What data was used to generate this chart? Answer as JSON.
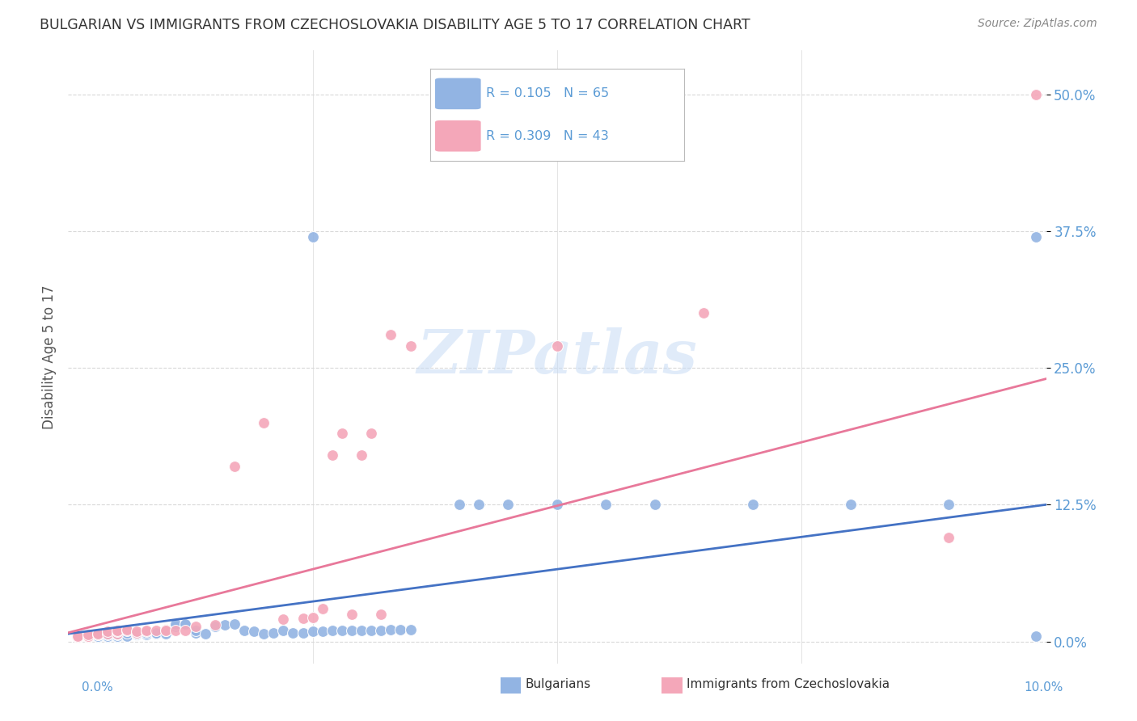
{
  "title": "BULGARIAN VS IMMIGRANTS FROM CZECHOSLOVAKIA DISABILITY AGE 5 TO 17 CORRELATION CHART",
  "source": "Source: ZipAtlas.com",
  "ylabel": "Disability Age 5 to 17",
  "ytick_labels": [
    "0.0%",
    "12.5%",
    "25.0%",
    "37.5%",
    "50.0%"
  ],
  "ytick_values": [
    0.0,
    0.125,
    0.25,
    0.375,
    0.5
  ],
  "xlim": [
    0.0,
    0.1
  ],
  "ylim": [
    -0.02,
    0.54
  ],
  "legend_blue_label": "Bulgarians",
  "legend_pink_label": "Immigrants from Czechoslovakia",
  "r_blue": 0.105,
  "n_blue": 65,
  "r_pink": 0.309,
  "n_pink": 43,
  "blue_color": "#92b4e3",
  "pink_color": "#f4a7b9",
  "blue_line_color": "#4472c4",
  "pink_line_color": "#e8789a",
  "axis_label_color": "#5b9bd5",
  "grid_color": "#d9d9d9",
  "watermark": "ZIPatlas",
  "blue_x": [
    0.001,
    0.001,
    0.002,
    0.002,
    0.002,
    0.003,
    0.003,
    0.003,
    0.004,
    0.004,
    0.004,
    0.004,
    0.005,
    0.005,
    0.005,
    0.005,
    0.006,
    0.006,
    0.007,
    0.007,
    0.008,
    0.008,
    0.009,
    0.009,
    0.01,
    0.01,
    0.011,
    0.011,
    0.012,
    0.012,
    0.013,
    0.013,
    0.014,
    0.015,
    0.016,
    0.017,
    0.018,
    0.019,
    0.02,
    0.021,
    0.022,
    0.023,
    0.024,
    0.025,
    0.026,
    0.027,
    0.028,
    0.029,
    0.03,
    0.031,
    0.032,
    0.033,
    0.034,
    0.035,
    0.04,
    0.042,
    0.045,
    0.05,
    0.055,
    0.06,
    0.07,
    0.08,
    0.09,
    0.099,
    0.099
  ],
  "blue_y": [
    0.004,
    0.005,
    0.004,
    0.005,
    0.005,
    0.004,
    0.005,
    0.006,
    0.004,
    0.005,
    0.005,
    0.006,
    0.004,
    0.005,
    0.006,
    0.007,
    0.005,
    0.008,
    0.006,
    0.007,
    0.006,
    0.009,
    0.007,
    0.008,
    0.007,
    0.01,
    0.014,
    0.016,
    0.015,
    0.016,
    0.008,
    0.01,
    0.007,
    0.014,
    0.015,
    0.016,
    0.01,
    0.009,
    0.007,
    0.008,
    0.01,
    0.008,
    0.008,
    0.008,
    0.009,
    0.01,
    0.01,
    0.01,
    0.01,
    0.01,
    0.01,
    0.011,
    0.011,
    0.011,
    0.125,
    0.125,
    0.125,
    0.125,
    0.125,
    0.125,
    0.125,
    0.125,
    0.125,
    0.005,
    0.37
  ],
  "pink_x": [
    0.001,
    0.001,
    0.002,
    0.002,
    0.002,
    0.003,
    0.003,
    0.004,
    0.004,
    0.004,
    0.005,
    0.005,
    0.005,
    0.006,
    0.006,
    0.007,
    0.007,
    0.008,
    0.008,
    0.009,
    0.01,
    0.01,
    0.011,
    0.012,
    0.013,
    0.015,
    0.017,
    0.02,
    0.022,
    0.024,
    0.025,
    0.026,
    0.027,
    0.028,
    0.029,
    0.03,
    0.031,
    0.032,
    0.033,
    0.035,
    0.05,
    0.09,
    0.099
  ],
  "pink_y": [
    0.004,
    0.005,
    0.004,
    0.005,
    0.006,
    0.006,
    0.007,
    0.007,
    0.008,
    0.009,
    0.007,
    0.008,
    0.009,
    0.01,
    0.011,
    0.008,
    0.009,
    0.009,
    0.01,
    0.01,
    0.011,
    0.01,
    0.01,
    0.01,
    0.014,
    0.015,
    0.016,
    0.02,
    0.02,
    0.021,
    0.022,
    0.023,
    0.03,
    0.17,
    0.2,
    0.025,
    0.17,
    0.19,
    0.024,
    0.28,
    0.27,
    0.095,
    0.5
  ]
}
